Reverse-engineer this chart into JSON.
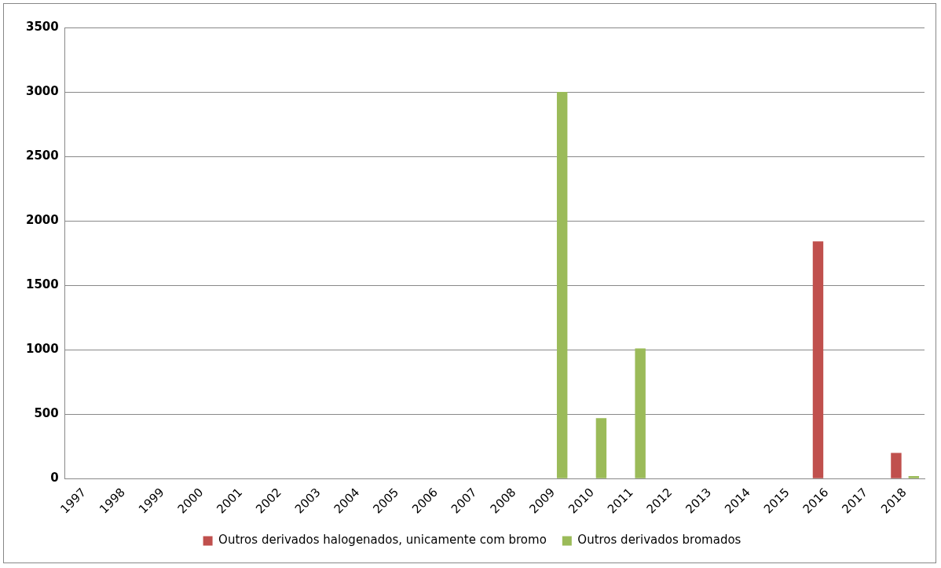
{
  "chart_data": {
    "type": "bar",
    "categories": [
      "1997",
      "1998",
      "1999",
      "2000",
      "2001",
      "2002",
      "2003",
      "2004",
      "2005",
      "2006",
      "2007",
      "2008",
      "2009",
      "2010",
      "2011",
      "2012",
      "2013",
      "2014",
      "2015",
      "2016",
      "2017",
      "2018"
    ],
    "series": [
      {
        "name": "Outros derivados halogenados, unicamente com bromo",
        "color": "#c0504d",
        "values": [
          null,
          null,
          null,
          null,
          null,
          null,
          null,
          null,
          null,
          null,
          null,
          null,
          null,
          null,
          null,
          null,
          null,
          null,
          null,
          1840,
          null,
          200
        ]
      },
      {
        "name": "Outros derivados bromados",
        "color": "#9bbb59",
        "values": [
          null,
          null,
          null,
          null,
          null,
          null,
          null,
          null,
          null,
          null,
          null,
          null,
          3000,
          470,
          1010,
          null,
          null,
          null,
          null,
          null,
          null,
          20
        ]
      }
    ],
    "ylim": [
      0,
      3500
    ],
    "yticks": [
      0,
      500,
      1000,
      1500,
      2000,
      2500,
      3000,
      3500
    ],
    "grid": "y",
    "legend": "bottom"
  }
}
